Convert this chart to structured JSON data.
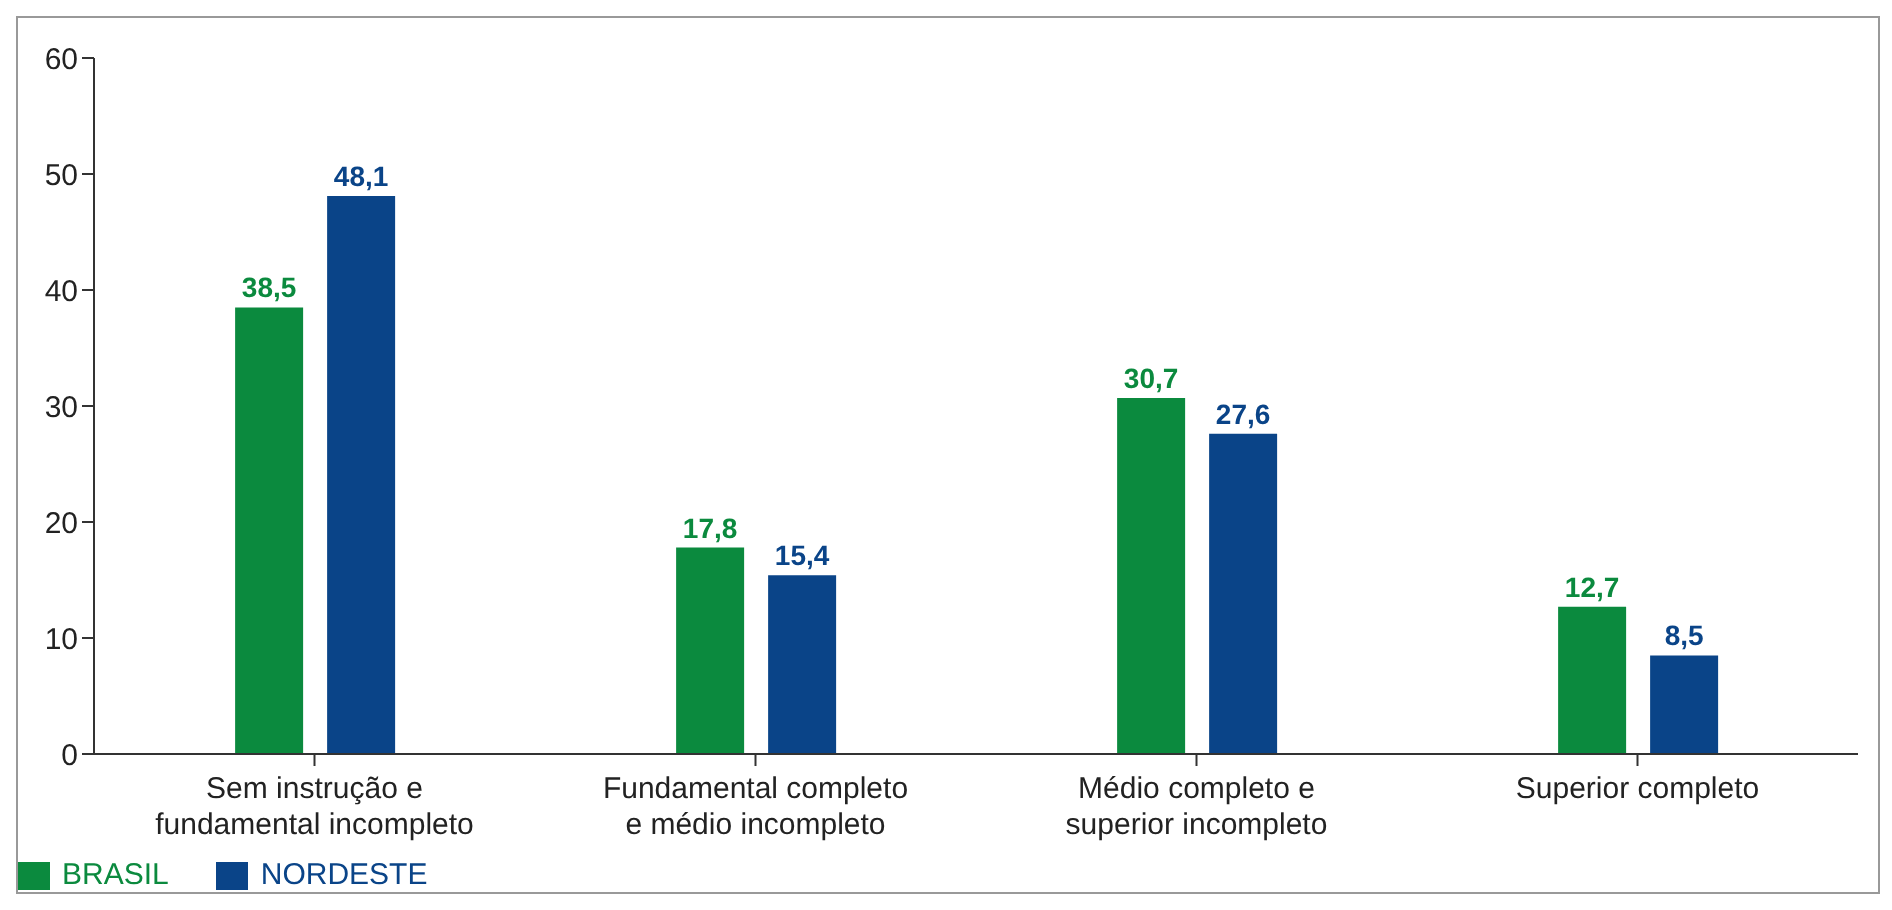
{
  "chart_data": {
    "type": "bar",
    "categories": [
      "Sem instrução e fundamental incompleto",
      "Fundamental completo e médio incompleto",
      "Médio completo e superior incompleto",
      "Superior completo"
    ],
    "series": [
      {
        "name": "BRASIL",
        "color": "#0b8a3e",
        "values": [
          38.5,
          17.8,
          30.7,
          12.7
        ],
        "value_labels": [
          "38,5",
          "17,8",
          "30,7",
          "12,7"
        ]
      },
      {
        "name": "NORDESTE",
        "color": "#0a4488",
        "values": [
          48.1,
          15.4,
          27.6,
          8.5
        ],
        "value_labels": [
          "48,1",
          "15,4",
          "27,6",
          "8,5"
        ]
      }
    ],
    "ylim": [
      0,
      60
    ],
    "yticks": [
      0,
      10,
      20,
      30,
      40,
      50,
      60
    ],
    "grid": false,
    "legend": "bottom left"
  }
}
